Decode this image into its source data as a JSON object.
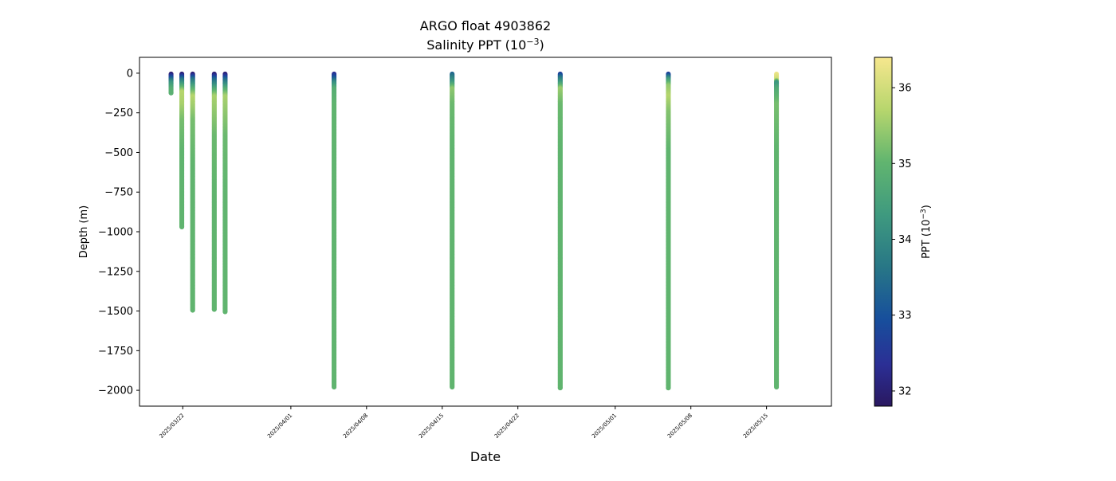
{
  "chart_data": {
    "type": "scatter",
    "title": "ARGO float 4903862",
    "subtitle_prefix": "Salinity PPT (10",
    "subtitle_exp": "−3",
    "subtitle_suffix": ")",
    "xlabel": "Date",
    "ylabel": "Depth (m)",
    "colorbar_label_prefix": "PPT (10",
    "colorbar_label_exp": "−3",
    "colorbar_label_suffix": ")",
    "colormap": "summer-blue-yellow",
    "x_type": "date",
    "xlim": [
      "2025-03-18",
      "2025-05-21"
    ],
    "ylim": [
      -2100,
      100
    ],
    "clim": [
      31.8,
      36.4
    ],
    "x_ticks": [
      {
        "date": "2025-03-22",
        "label": "2025/03/22"
      },
      {
        "date": "2025-04-01",
        "label": "2025/04/01"
      },
      {
        "date": "2025-04-08",
        "label": "2025/04/08"
      },
      {
        "date": "2025-04-15",
        "label": "2025/04/15"
      },
      {
        "date": "2025-04-22",
        "label": "2025/04/22"
      },
      {
        "date": "2025-05-01",
        "label": "2025/05/01"
      },
      {
        "date": "2025-05-08",
        "label": "2025/05/08"
      },
      {
        "date": "2025-05-15",
        "label": "2025/05/15"
      }
    ],
    "y_ticks": [
      {
        "value": 0,
        "label": "0"
      },
      {
        "value": -250,
        "label": "−250"
      },
      {
        "value": -500,
        "label": "−500"
      },
      {
        "value": -750,
        "label": "−750"
      },
      {
        "value": -1000,
        "label": "−1000"
      },
      {
        "value": -1250,
        "label": "−1250"
      },
      {
        "value": -1500,
        "label": "−1500"
      },
      {
        "value": -1750,
        "label": "−1750"
      },
      {
        "value": -2000,
        "label": "−2000"
      }
    ],
    "colorbar_ticks": [
      {
        "value": 32,
        "label": "32"
      },
      {
        "value": 33,
        "label": "33"
      },
      {
        "value": 34,
        "label": "34"
      },
      {
        "value": 35,
        "label": "35"
      },
      {
        "value": 36,
        "label": "36"
      }
    ],
    "profiles": [
      {
        "date": "2025-03-20 22:00",
        "points": [
          [
            -5,
            31.9
          ],
          [
            -30,
            33.0
          ],
          [
            -60,
            34.2
          ],
          [
            -100,
            34.8
          ],
          [
            -125,
            34.9
          ]
        ]
      },
      {
        "date": "2025-03-21 22:00",
        "points": [
          [
            -5,
            31.9
          ],
          [
            -40,
            33.5
          ],
          [
            -80,
            34.6
          ],
          [
            -120,
            35.7
          ],
          [
            -200,
            35.6
          ],
          [
            -300,
            35.2
          ],
          [
            -500,
            35.0
          ],
          [
            -970,
            35.0
          ]
        ]
      },
      {
        "date": "2025-03-22 22:00",
        "points": [
          [
            -5,
            31.9
          ],
          [
            -40,
            33.5
          ],
          [
            -100,
            34.8
          ],
          [
            -150,
            35.7
          ],
          [
            -220,
            35.5
          ],
          [
            -300,
            35.2
          ],
          [
            -600,
            35.0
          ],
          [
            -1000,
            35.0
          ],
          [
            -1495,
            35.0
          ]
        ]
      },
      {
        "date": "2025-03-24 22:00",
        "points": [
          [
            -5,
            31.9
          ],
          [
            -40,
            33.3
          ],
          [
            -100,
            34.6
          ],
          [
            -150,
            35.6
          ],
          [
            -250,
            35.4
          ],
          [
            -400,
            35.1
          ],
          [
            -800,
            35.0
          ],
          [
            -1490,
            35.0
          ]
        ]
      },
      {
        "date": "2025-03-25 22:00",
        "points": [
          [
            -5,
            31.9
          ],
          [
            -40,
            33.3
          ],
          [
            -100,
            34.7
          ],
          [
            -150,
            35.6
          ],
          [
            -250,
            35.4
          ],
          [
            -400,
            35.1
          ],
          [
            -800,
            35.0
          ],
          [
            -1505,
            35.0
          ]
        ]
      },
      {
        "date": "2025-04-05 00:00",
        "points": [
          [
            -5,
            32.3
          ],
          [
            -30,
            33.0
          ],
          [
            -60,
            34.0
          ],
          [
            -100,
            34.8
          ],
          [
            -200,
            35.0
          ],
          [
            -500,
            35.0
          ],
          [
            -1000,
            35.0
          ],
          [
            -1500,
            35.0
          ],
          [
            -1980,
            35.0
          ]
        ]
      },
      {
        "date": "2025-04-15 22:00",
        "points": [
          [
            -5,
            33.3
          ],
          [
            -30,
            33.8
          ],
          [
            -60,
            34.3
          ],
          [
            -100,
            35.4
          ],
          [
            -200,
            35.1
          ],
          [
            -500,
            35.0
          ],
          [
            -1000,
            35.0
          ],
          [
            -1500,
            35.0
          ],
          [
            -1980,
            35.0
          ]
        ]
      },
      {
        "date": "2025-04-25 22:00",
        "points": [
          [
            -5,
            32.6
          ],
          [
            -30,
            33.6
          ],
          [
            -60,
            34.3
          ],
          [
            -100,
            35.5
          ],
          [
            -200,
            35.1
          ],
          [
            -500,
            35.0
          ],
          [
            -1000,
            35.0
          ],
          [
            -1500,
            35.0
          ],
          [
            -1985,
            35.0
          ]
        ]
      },
      {
        "date": "2025-05-05 22:00",
        "points": [
          [
            -5,
            32.6
          ],
          [
            -40,
            34.3
          ],
          [
            -80,
            35.4
          ],
          [
            -150,
            35.7
          ],
          [
            -250,
            35.3
          ],
          [
            -500,
            35.0
          ],
          [
            -1000,
            35.0
          ],
          [
            -1500,
            35.0
          ],
          [
            -1985,
            35.0
          ]
        ]
      },
      {
        "date": "2025-05-15 22:00",
        "points": [
          [
            -5,
            36.3
          ],
          [
            -40,
            36.0
          ],
          [
            -60,
            34.2
          ],
          [
            -100,
            34.7
          ],
          [
            -200,
            35.2
          ],
          [
            -500,
            35.0
          ],
          [
            -1000,
            35.0
          ],
          [
            -1500,
            35.0
          ],
          [
            -1980,
            35.0
          ]
        ]
      }
    ]
  }
}
